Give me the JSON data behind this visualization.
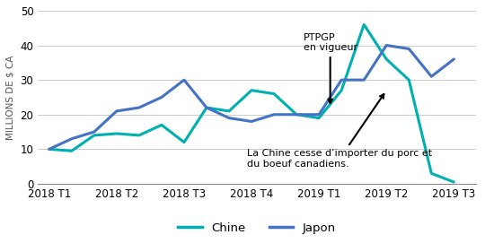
{
  "x_labels": [
    "2018 T1",
    "2018 T2",
    "2018 T3",
    "2018 T4",
    "2019 T1",
    "2019 T2",
    "2019 T3"
  ],
  "x_ticks_positions": [
    0,
    3,
    6,
    9,
    12,
    15,
    18
  ],
  "chine_x": [
    0,
    1,
    2,
    3,
    4,
    5,
    6,
    7,
    8,
    9,
    10,
    11,
    12,
    13,
    14,
    15,
    16,
    17,
    18
  ],
  "chine_y": [
    10,
    9.5,
    14,
    14.5,
    14,
    17,
    12,
    22,
    21,
    27,
    26,
    20,
    19,
    27,
    46,
    36,
    30,
    3,
    0.5
  ],
  "japon_x": [
    0,
    1,
    2,
    3,
    4,
    5,
    6,
    7,
    8,
    9,
    10,
    11,
    12,
    13,
    14,
    15,
    16,
    17,
    18
  ],
  "japon_y": [
    10,
    13,
    15,
    21,
    22,
    25,
    30,
    22,
    19,
    18,
    20,
    20,
    20,
    30,
    30,
    40,
    39,
    31,
    36
  ],
  "chine_color": "#00B0B0",
  "japon_color": "#4472C4",
  "ylabel": "MILLIONS DE $ CA",
  "ylim": [
    0,
    50
  ],
  "yticks": [
    0,
    10,
    20,
    30,
    40,
    50
  ],
  "annotation1_text": "PTPGP\nen vigueur",
  "annotation2_text": "La Chine cesse d’importer du porc et\ndu boeuf canadiens.",
  "legend_chine": "Chine",
  "legend_japon": "Japon",
  "line_width": 2.2
}
